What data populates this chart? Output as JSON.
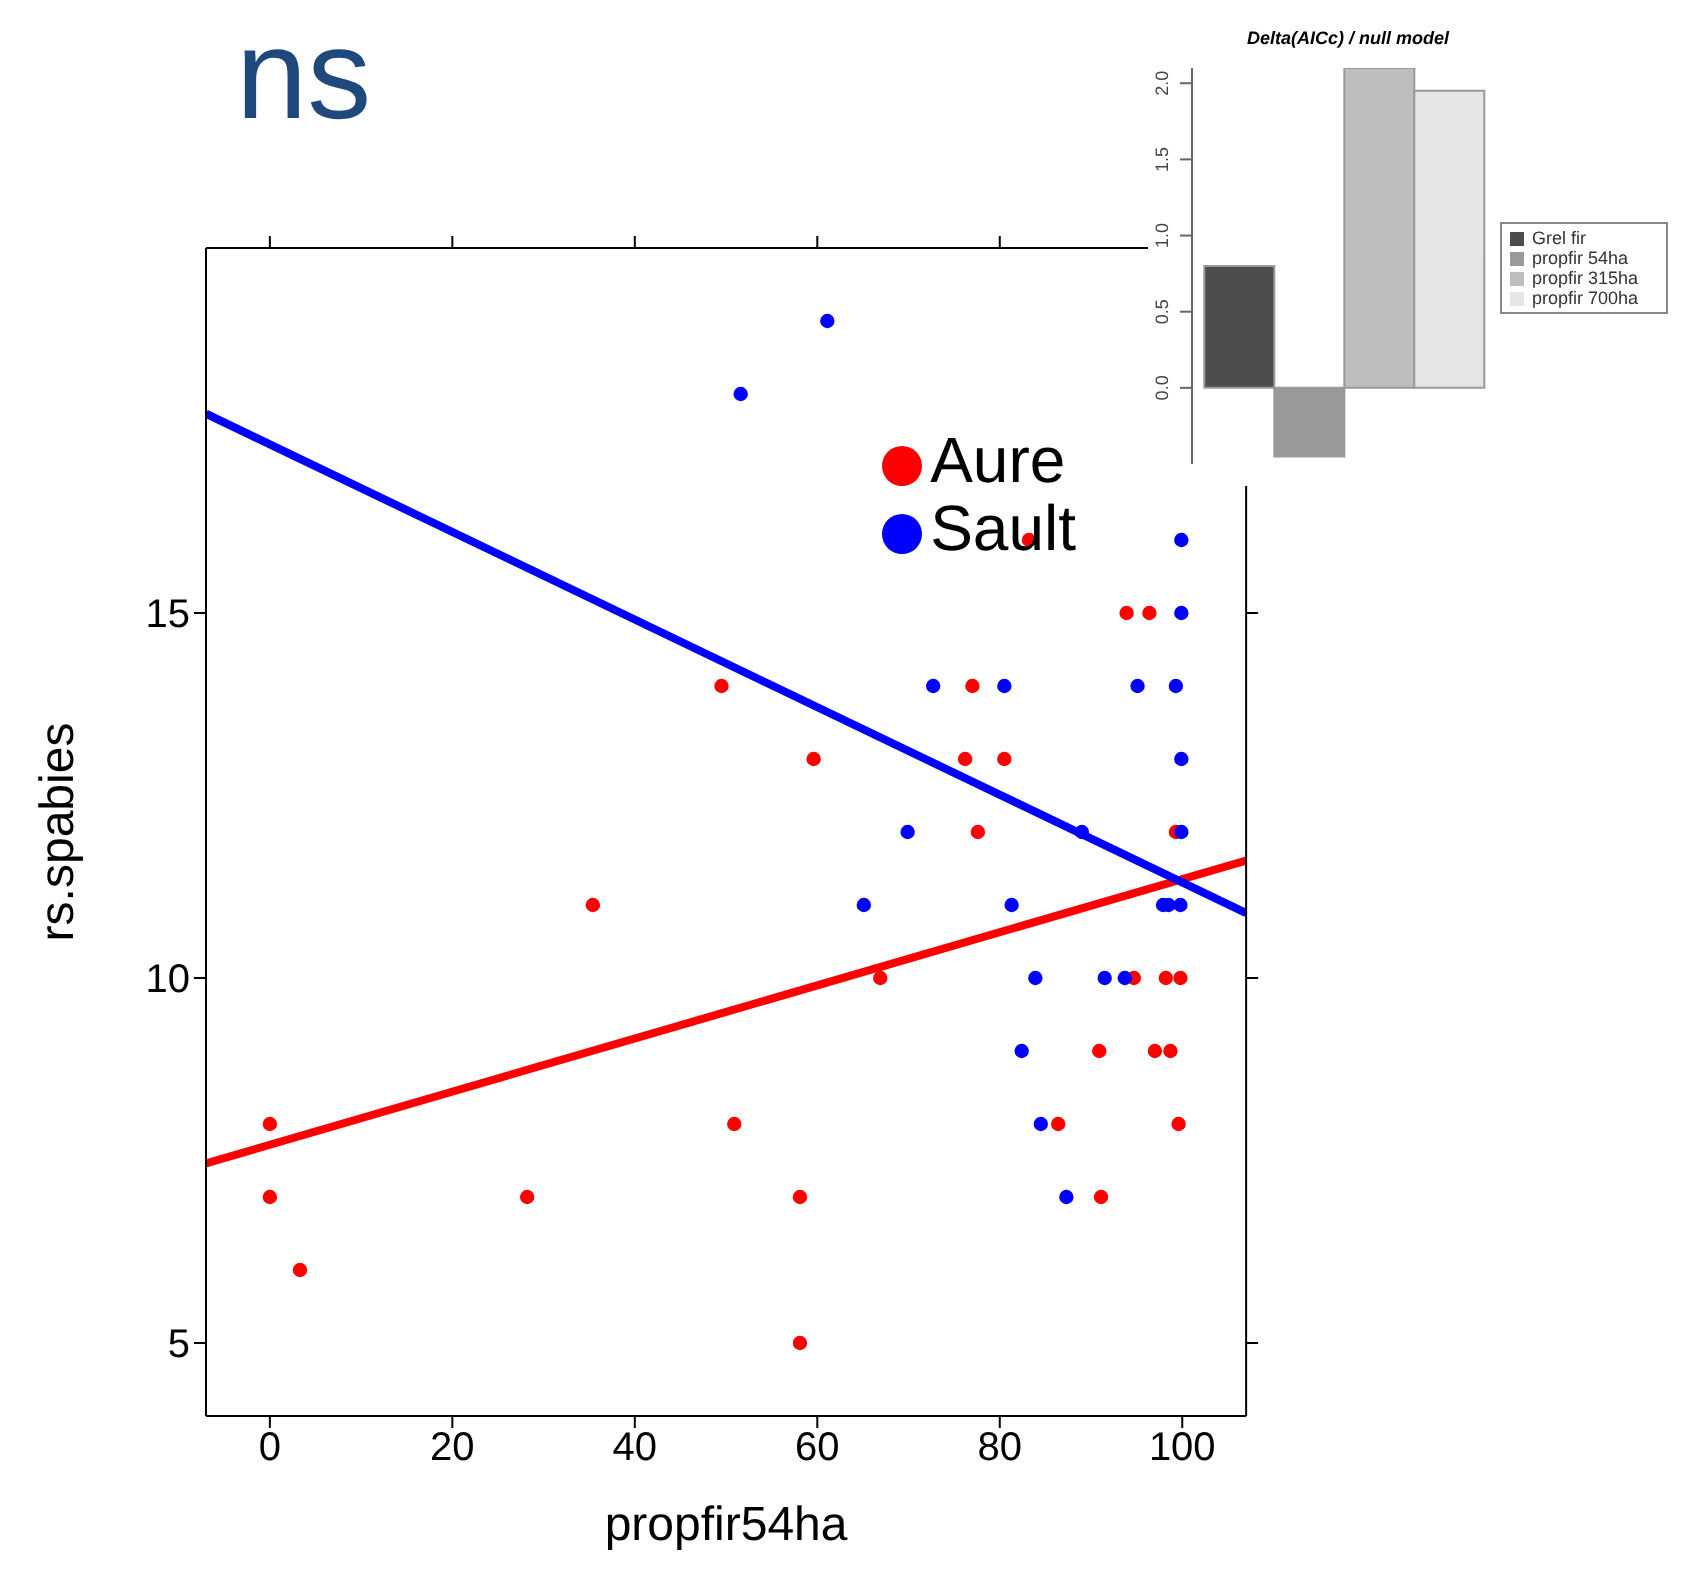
{
  "chart_data": [
    {
      "type": "scatter",
      "title": "ns",
      "xlabel": "propfir54ha",
      "ylabel": "rs.spabies",
      "xlim": [
        -7,
        107
      ],
      "xticks": [
        0,
        20,
        40,
        60,
        80,
        100
      ],
      "ylim": [
        4,
        20
      ],
      "yticks": [
        5,
        10,
        15
      ],
      "grid": false,
      "legend": "top right",
      "marker": "circle",
      "series": [
        {
          "name": "Aure",
          "type": "scatter",
          "color": "#ff0000",
          "x": [
            0,
            0,
            3.3,
            28.2,
            35.4,
            49.5,
            50.9,
            58.1,
            58.1,
            59.6,
            66.9,
            76.2,
            77,
            77.6,
            80.5,
            83.2,
            86.4,
            90.9,
            91.1,
            93.9,
            94.7,
            96.4,
            97,
            98.2,
            98.7,
            99.3,
            99.6,
            99.8
          ],
          "values": [
            8,
            7,
            6,
            7,
            11,
            14,
            8,
            7,
            5,
            13,
            10,
            13,
            14,
            12,
            13,
            16,
            8,
            9,
            7,
            15,
            10,
            15,
            9,
            10,
            9,
            12,
            8,
            10
          ]
        },
        {
          "name": "Sault",
          "type": "scatter",
          "color": "#0000ff",
          "x": [
            51.6,
            61.1,
            99.9,
            99.9,
            72.7,
            80.5,
            95.1,
            99.3,
            99.9,
            69.9,
            89,
            99.9,
            65.1,
            81.3,
            97.9,
            98.5,
            99.8,
            83.9,
            91.5,
            93.7,
            82.4,
            84.5,
            87.3
          ],
          "values": [
            18,
            19,
            16,
            15,
            14,
            14,
            14,
            14,
            13,
            12,
            12,
            12,
            11,
            11,
            11,
            11,
            11,
            10,
            10,
            10,
            9,
            8,
            7
          ]
        },
        {
          "type": "line",
          "marker": "none",
          "color": "#ff0000",
          "x": [
            -7,
            107
          ],
          "values": [
            7.46,
            11.61
          ]
        },
        {
          "type": "line",
          "marker": "none",
          "color": "#0000ff",
          "x": [
            -7,
            107
          ],
          "values": [
            17.73,
            10.89
          ]
        }
      ]
    },
    {
      "type": "bar",
      "title": "Delta(AICc) / null model",
      "categories": [
        null
      ],
      "ylim": [
        -0.5,
        2.1
      ],
      "yticks": [
        {
          "value": 0,
          "label": "0.0"
        },
        {
          "value": 0.5,
          "label": "0.5"
        },
        {
          "value": 1,
          "label": "1.0"
        },
        {
          "value": 1.5,
          "label": "1.5"
        },
        {
          "value": 2,
          "label": "2.0"
        }
      ],
      "grid": false,
      "legend": "right",
      "tick_labels": "y",
      "series": [
        {
          "name": "Grel fir",
          "color": "#4d4d4d",
          "values": [
            0.8
          ]
        },
        {
          "name": "propfir 54ha",
          "color": "#999999",
          "values": [
            -0.45
          ]
        },
        {
          "name": "propfir 315ha",
          "color": "#bebebe",
          "values": [
            2.1
          ]
        },
        {
          "name": "propfir 700ha",
          "color": "#e6e6e6",
          "values": [
            1.95
          ]
        }
      ]
    }
  ]
}
